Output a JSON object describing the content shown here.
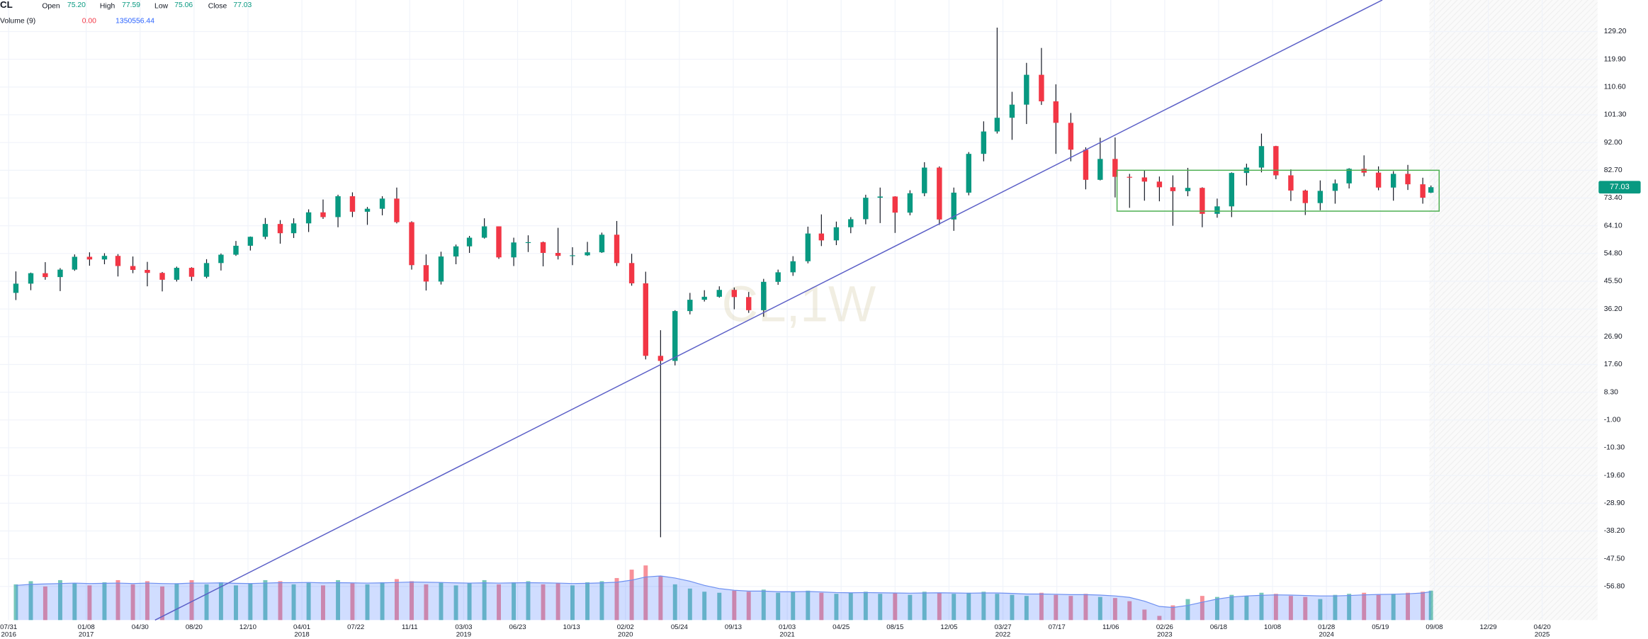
{
  "chart_data": {
    "type": "candlestick",
    "legend": {
      "symbol": "CL",
      "items": [
        {
          "label": "Open",
          "value": "75.20"
        },
        {
          "label": "High",
          "value": "77.59"
        },
        {
          "label": "Low",
          "value": "75.06"
        },
        {
          "label": "Close",
          "value": "77.03"
        }
      ],
      "volume_label": "Volume (9)",
      "volume_value": "0.00"
    },
    "watermark": "CL,1W",
    "up_color": "#089981",
    "down_color": "#f23645",
    "x": [
      "2016-08-15",
      "2016-09-15",
      "2016-10-15",
      "2016-11-15",
      "2016-12-15",
      "2017-01-15",
      "2017-02-15",
      "2017-03-15",
      "2017-04-15",
      "2017-05-15",
      "2017-06-15",
      "2017-07-15",
      "2017-08-15",
      "2017-09-15",
      "2017-10-15",
      "2017-11-15",
      "2017-12-15",
      "2018-01-15",
      "2018-02-15",
      "2018-03-15",
      "2018-04-15",
      "2018-05-15",
      "2018-06-15",
      "2018-07-15",
      "2018-08-15",
      "2018-09-15",
      "2018-10-15",
      "2018-11-15",
      "2018-12-15",
      "2019-01-15",
      "2019-02-15",
      "2019-03-15",
      "2019-04-15",
      "2019-05-15",
      "2019-06-15",
      "2019-07-15",
      "2019-08-15",
      "2019-09-15",
      "2019-10-15",
      "2019-11-15",
      "2019-12-15",
      "2020-01-15",
      "2020-02-15",
      "2020-03-15",
      "2020-04-15",
      "2020-05-15",
      "2020-06-15",
      "2020-07-15",
      "2020-08-15",
      "2020-09-15",
      "2020-10-15",
      "2020-11-15",
      "2020-12-15",
      "2021-01-15",
      "2021-02-15",
      "2021-03-15",
      "2021-04-15",
      "2021-05-15",
      "2021-06-15",
      "2021-07-15",
      "2021-08-15",
      "2021-09-15",
      "2021-10-15",
      "2021-11-15",
      "2021-12-15",
      "2022-01-15",
      "2022-02-15",
      "2022-03-15",
      "2022-04-15",
      "2022-05-15",
      "2022-06-15",
      "2022-07-15",
      "2022-08-15",
      "2022-09-15",
      "2022-10-15",
      "2022-11-15",
      "2022-12-15",
      "2023-01-15",
      "2023-02-15",
      "2023-03-15",
      "2023-04-15",
      "2023-05-15",
      "2023-06-15",
      "2023-07-15",
      "2023-08-15",
      "2023-09-15",
      "2023-10-15",
      "2023-11-15",
      "2023-12-15",
      "2024-01-15",
      "2024-02-15",
      "2024-03-15",
      "2024-04-15",
      "2024-05-15",
      "2024-06-15",
      "2024-07-15",
      "2024-08-15",
      "2024-09-01"
    ],
    "open": [
      41.6,
      44.7,
      48.2,
      46.9,
      49.4,
      53.7,
      52.8,
      54.0,
      50.6,
      49.3,
      48.3,
      46.0,
      50.0,
      47.0,
      51.6,
      54.4,
      57.4,
      60.4,
      64.7,
      61.6,
      64.9,
      68.6,
      67.0,
      74.0,
      68.8,
      69.8,
      73.2,
      65.3,
      50.9,
      45.4,
      53.8,
      57.2,
      60.1,
      63.9,
      53.5,
      58.5,
      58.6,
      55.0,
      54.0,
      54.2,
      55.2,
      61.1,
      51.6,
      44.8,
      20.5,
      18.8,
      35.5,
      39.3,
      40.3,
      42.6,
      40.2,
      35.8,
      45.3,
      48.5,
      52.2,
      61.5,
      59.2,
      63.6,
      66.3,
      73.5,
      73.9,
      68.5,
      75.0,
      83.6,
      66.2,
      75.2,
      88.2,
      95.7,
      100.3,
      104.7,
      114.7,
      105.8,
      98.6,
      89.6,
      79.5,
      86.5,
      80.5,
      80.3,
      78.9,
      77.0,
      75.7,
      76.8,
      68.1,
      70.6,
      81.8,
      83.6,
      90.8,
      81.0,
      75.9,
      71.7,
      75.8,
      78.3,
      83.2,
      81.9,
      76.9,
      81.5,
      78.0,
      75.2
    ],
    "high": [
      48.8,
      48.4,
      51.9,
      49.9,
      54.5,
      55.2,
      54.9,
      54.6,
      53.8,
      52.0,
      48.6,
      50.4,
      50.2,
      52.9,
      54.8,
      59.0,
      60.5,
      66.7,
      66.0,
      66.6,
      69.6,
      72.9,
      74.5,
      75.3,
      70.4,
      74.0,
      76.9,
      65.6,
      54.5,
      55.4,
      57.8,
      60.7,
      66.6,
      63.9,
      60.1,
      60.9,
      58.8,
      63.4,
      56.9,
      58.7,
      61.8,
      65.7,
      54.7,
      48.7,
      29.1,
      35.8,
      41.6,
      42.5,
      43.8,
      43.4,
      41.9,
      46.3,
      49.4,
      53.9,
      63.8,
      67.9,
      65.5,
      67.0,
      74.5,
      76.9,
      74.0,
      76.0,
      85.4,
      84.0,
      76.9,
      88.8,
      99.1,
      130.5,
      109.0,
      118.7,
      123.7,
      111.5,
      101.9,
      90.4,
      93.6,
      93.7,
      81.5,
      82.7,
      80.6,
      81.0,
      83.5,
      77.0,
      73.2,
      82.0,
      84.9,
      95.0,
      90.9,
      83.0,
      76.2,
      79.3,
      79.6,
      83.4,
      87.7,
      84.0,
      82.4,
      84.5,
      80.2,
      77.59
    ],
    "low": [
      39.2,
      42.5,
      46.0,
      42.2,
      49.0,
      50.7,
      51.2,
      47.1,
      48.2,
      43.8,
      42.1,
      45.4,
      45.6,
      46.5,
      49.1,
      54.0,
      55.8,
      59.6,
      58.1,
      60.0,
      62.0,
      66.4,
      63.6,
      67.0,
      64.4,
      67.6,
      64.9,
      49.4,
      42.4,
      44.4,
      51.2,
      55.0,
      59.8,
      53.0,
      50.6,
      55.3,
      50.5,
      52.8,
      50.9,
      54.0,
      55.0,
      50.6,
      44.0,
      19.3,
      -40.3,
      17.3,
      34.4,
      38.7,
      40.0,
      36.1,
      34.9,
      33.6,
      44.3,
      47.3,
      51.5,
      57.3,
      57.6,
      61.6,
      64.6,
      65.0,
      61.7,
      67.6,
      74.0,
      64.4,
      62.4,
      74.3,
      85.7,
      95.0,
      92.9,
      98.2,
      104.6,
      88.2,
      85.7,
      76.3,
      79.3,
      73.6,
      70.1,
      72.5,
      72.3,
      64.1,
      74.0,
      63.6,
      66.8,
      67.0,
      77.6,
      82.0,
      79.7,
      72.4,
      67.7,
      69.3,
      71.5,
      76.6,
      80.7,
      76.0,
      72.5,
      76.1,
      71.5,
      75.06
    ],
    "close": [
      44.7,
      48.2,
      46.9,
      49.4,
      53.7,
      52.8,
      54.0,
      50.6,
      49.3,
      48.3,
      46.0,
      50.0,
      47.0,
      51.6,
      54.4,
      57.4,
      60.4,
      64.7,
      61.6,
      64.9,
      68.6,
      67.0,
      74.0,
      68.8,
      69.8,
      73.2,
      65.3,
      50.9,
      45.4,
      53.8,
      57.2,
      60.1,
      63.9,
      53.5,
      58.5,
      58.6,
      55.0,
      54.0,
      54.2,
      55.2,
      61.1,
      51.6,
      44.8,
      20.5,
      18.8,
      35.5,
      39.3,
      40.3,
      42.6,
      40.2,
      35.8,
      45.3,
      48.5,
      52.2,
      61.5,
      59.2,
      63.6,
      66.3,
      73.5,
      73.9,
      68.5,
      75.0,
      83.6,
      66.2,
      75.2,
      88.2,
      95.7,
      100.3,
      104.7,
      114.7,
      105.8,
      98.6,
      89.6,
      79.5,
      86.5,
      80.5,
      80.3,
      78.9,
      77.0,
      75.7,
      76.8,
      68.1,
      70.6,
      81.8,
      83.6,
      90.8,
      81.0,
      75.9,
      71.7,
      75.8,
      78.3,
      83.2,
      81.9,
      76.9,
      81.5,
      78.0,
      73.5,
      77.03
    ],
    "volume": [
      1700000,
      1850000,
      1600000,
      1900000,
      1750000,
      1650000,
      1800000,
      1900000,
      1700000,
      1850000,
      1600000,
      1750000,
      1900000,
      1700000,
      1800000,
      1650000,
      1750000,
      1900000,
      1850000,
      1700000,
      1800000,
      1650000,
      1900000,
      1750000,
      1700000,
      1800000,
      1950000,
      1850000,
      1700000,
      1800000,
      1650000,
      1750000,
      1900000,
      1700000,
      1800000,
      1850000,
      1700000,
      1750000,
      1650000,
      1800000,
      1850000,
      2000000,
      2400000,
      2600000,
      2100000,
      1700000,
      1500000,
      1350000,
      1300000,
      1400000,
      1350000,
      1450000,
      1300000,
      1350000,
      1400000,
      1300000,
      1250000,
      1300000,
      1350000,
      1250000,
      1300000,
      1200000,
      1350000,
      1300000,
      1250000,
      1300000,
      1350000,
      1250000,
      1200000,
      1150000,
      1300000,
      1200000,
      1150000,
      1250000,
      1100000,
      1050000,
      900000,
      500000,
      200000,
      700000,
      1000000,
      1150000,
      1100000,
      1200000,
      1150000,
      1300000,
      1250000,
      1150000,
      1100000,
      1000000,
      1200000,
      1250000,
      1300000,
      1200000,
      1250000,
      1300000,
      1350000,
      1400000
    ],
    "volume_ma": [
      1650000,
      1700000,
      1720000,
      1740000,
      1760000,
      1740000,
      1750000,
      1760000,
      1740000,
      1760000,
      1740000,
      1730000,
      1760000,
      1760000,
      1770000,
      1750000,
      1740000,
      1760000,
      1780000,
      1780000,
      1790000,
      1770000,
      1780000,
      1770000,
      1760000,
      1770000,
      1790000,
      1810000,
      1800000,
      1790000,
      1770000,
      1760000,
      1770000,
      1760000,
      1770000,
      1780000,
      1770000,
      1760000,
      1740000,
      1750000,
      1770000,
      1800000,
      1900000,
      2050000,
      2100000,
      2000000,
      1850000,
      1650000,
      1500000,
      1420000,
      1380000,
      1380000,
      1350000,
      1350000,
      1360000,
      1340000,
      1310000,
      1300000,
      1310000,
      1300000,
      1290000,
      1280000,
      1290000,
      1300000,
      1290000,
      1280000,
      1290000,
      1290000,
      1270000,
      1240000,
      1240000,
      1230000,
      1210000,
      1210000,
      1190000,
      1150000,
      1080000,
      900000,
      650000,
      600000,
      700000,
      850000,
      1000000,
      1100000,
      1150000,
      1180000,
      1200000,
      1190000,
      1170000,
      1150000,
      1150000,
      1170000,
      1200000,
      1220000,
      1230000,
      1250000,
      1290000,
      1350556.44
    ],
    "volume_ylim": [
      0,
      3000000
    ],
    "trendline": {
      "x": [
        "2017-05-31",
        "2024-05-23"
      ],
      "y": [
        -68.07,
        139.77
      ],
      "color": "#5b5fc7"
    },
    "box": {
      "x": [
        "2022-11-19",
        "2024-09-18"
      ],
      "y": [
        82.7,
        69.0
      ],
      "color": "#4caf50"
    },
    "xlim": [
      "2016-07-13",
      "2025-08-13"
    ],
    "ylim": [
      -68.07,
      139.77
    ],
    "grid": true,
    "yticks": [
      {
        "value": 129.2,
        "label": "129.20"
      },
      {
        "value": 119.9,
        "label": "119.90"
      },
      {
        "value": 110.6,
        "label": "110.60"
      },
      {
        "value": 101.3,
        "label": "101.30"
      },
      {
        "value": 92.0,
        "label": "92.00"
      },
      {
        "value": 82.7,
        "label": "82.70"
      },
      {
        "value": 73.4,
        "label": "73.40"
      },
      {
        "value": 64.1,
        "label": "64.10"
      },
      {
        "value": 54.8,
        "label": "54.80"
      },
      {
        "value": 45.5,
        "label": "45.50"
      },
      {
        "value": 36.2,
        "label": "36.20"
      },
      {
        "value": 26.9,
        "label": "26.90"
      },
      {
        "value": 17.6,
        "label": "17.60"
      },
      {
        "value": 8.3,
        "label": "8.30"
      },
      {
        "value": -1.0,
        "label": "-1.00"
      },
      {
        "value": -10.3,
        "label": "-10.30"
      },
      {
        "value": -19.6,
        "label": "-19.60"
      },
      {
        "value": -28.9,
        "label": "-28.90"
      },
      {
        "value": -38.2,
        "label": "-38.20"
      },
      {
        "value": -47.5,
        "label": "-47.50"
      },
      {
        "value": -56.8,
        "label": "-56.80"
      }
    ],
    "xticks": [
      {
        "value": "2016-07-31",
        "label": "07/31",
        "year": "2016"
      },
      {
        "value": "2017-01-08",
        "label": "01/08",
        "year": "2017"
      },
      {
        "value": "2017-04-30",
        "label": "04/30"
      },
      {
        "value": "2017-08-20",
        "label": "08/20"
      },
      {
        "value": "2017-12-10",
        "label": "12/10"
      },
      {
        "value": "2018-04-01",
        "label": "04/01",
        "year": "2018"
      },
      {
        "value": "2018-07-22",
        "label": "07/22"
      },
      {
        "value": "2018-11-11",
        "label": "11/11"
      },
      {
        "value": "2019-03-03",
        "label": "03/03",
        "year": "2019"
      },
      {
        "value": "2019-06-23",
        "label": "06/23"
      },
      {
        "value": "2019-10-13",
        "label": "10/13"
      },
      {
        "value": "2020-02-02",
        "label": "02/02",
        "year": "2020"
      },
      {
        "value": "2020-05-24",
        "label": "05/24"
      },
      {
        "value": "2020-09-13",
        "label": "09/13"
      },
      {
        "value": "2021-01-03",
        "label": "01/03",
        "year": "2021"
      },
      {
        "value": "2021-04-25",
        "label": "04/25"
      },
      {
        "value": "2021-08-15",
        "label": "08/15"
      },
      {
        "value": "2021-12-05",
        "label": "12/05"
      },
      {
        "value": "2022-03-27",
        "label": "03/27",
        "year": "2022"
      },
      {
        "value": "2022-07-17",
        "label": "07/17"
      },
      {
        "value": "2022-11-06",
        "label": "11/06"
      },
      {
        "value": "2023-02-26",
        "label": "02/26",
        "year": "2023"
      },
      {
        "value": "2023-06-18",
        "label": "06/18"
      },
      {
        "value": "2023-10-08",
        "label": "10/08"
      },
      {
        "value": "2024-01-28",
        "label": "01/28",
        "year": "2024"
      },
      {
        "value": "2024-05-19",
        "label": "05/19"
      },
      {
        "value": "2024-09-08",
        "label": "09/08"
      },
      {
        "value": "2024-12-29",
        "label": "12/29"
      },
      {
        "value": "2025-04-20",
        "label": "04/20",
        "year": "2025"
      }
    ]
  }
}
